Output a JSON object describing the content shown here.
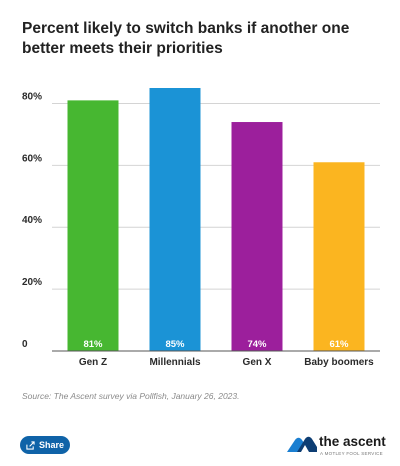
{
  "chart_data": {
    "type": "bar",
    "title": "Percent likely to switch banks if another one better meets their priorities",
    "categories": [
      "Gen Z",
      "Millennials",
      "Gen X",
      "Baby boomers"
    ],
    "values": [
      81,
      85,
      74,
      61
    ],
    "value_labels": [
      "81%",
      "85%",
      "74%",
      "61%"
    ],
    "colors": [
      "#47b731",
      "#1b93d6",
      "#9c1f9c",
      "#fbb520"
    ],
    "yticks": [
      0,
      20,
      40,
      60,
      80
    ],
    "ytick_labels": [
      "0",
      "20%",
      "40%",
      "60%",
      "80%"
    ],
    "ylim": [
      0,
      85
    ],
    "grid": true,
    "xlabel": "",
    "ylabel": ""
  },
  "source": "Source: The Ascent survey via Pollfish, January 26, 2023.",
  "share": {
    "label": "Share",
    "icon": "share-icon"
  },
  "brand": {
    "name": "the ascent",
    "tagline": "A MOTLEY FOOL SERVICE",
    "icon": "ascent-logo-icon"
  }
}
